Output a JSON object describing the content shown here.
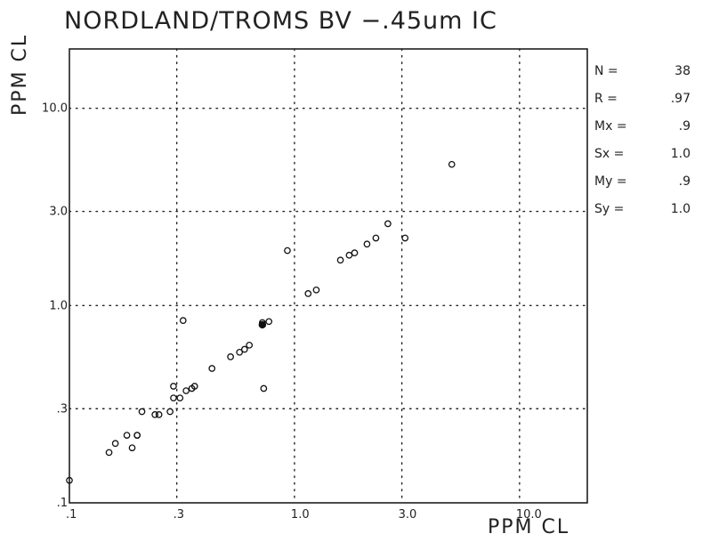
{
  "chart_data": {
    "type": "scatter",
    "title": "NORDLAND/TROMS BV  −.45um IC",
    "xlabel": "PPM CL",
    "ylabel": "PPM CL",
    "x_scale": "log",
    "y_scale": "log",
    "xlim": [
      0.1,
      20
    ],
    "ylim": [
      0.1,
      20
    ],
    "grid": true,
    "x_tick_values": [
      0.1,
      0.3,
      1.0,
      3.0,
      10.0
    ],
    "x_tick_labels": [
      ".1",
      ".3",
      "1.0",
      "3.0",
      "10.0"
    ],
    "y_tick_values": [
      0.1,
      0.3,
      1.0,
      3.0,
      10.0
    ],
    "y_tick_labels": [
      ".1",
      ".3",
      "1.0",
      "3.0",
      "10.0"
    ],
    "stats": [
      {
        "name": "N =",
        "value": "38"
      },
      {
        "name": "R =",
        "value": ".97"
      },
      {
        "name": "Mx =",
        "value": ".9"
      },
      {
        "name": "Sx =",
        "value": "1.0"
      },
      {
        "name": "My =",
        "value": ".9"
      },
      {
        "name": "Sy =",
        "value": "1.0"
      }
    ],
    "points": [
      {
        "x": 0.1,
        "y": 0.13
      },
      {
        "x": 0.15,
        "y": 0.18
      },
      {
        "x": 0.16,
        "y": 0.2
      },
      {
        "x": 0.18,
        "y": 0.22
      },
      {
        "x": 0.19,
        "y": 0.19
      },
      {
        "x": 0.2,
        "y": 0.22
      },
      {
        "x": 0.2,
        "y": 0.22
      },
      {
        "x": 0.21,
        "y": 0.29
      },
      {
        "x": 0.24,
        "y": 0.28
      },
      {
        "x": 0.25,
        "y": 0.28
      },
      {
        "x": 0.28,
        "y": 0.29
      },
      {
        "x": 0.29,
        "y": 0.34
      },
      {
        "x": 0.29,
        "y": 0.39
      },
      {
        "x": 0.31,
        "y": 0.34
      },
      {
        "x": 0.32,
        "y": 0.84
      },
      {
        "x": 0.33,
        "y": 0.37
      },
      {
        "x": 0.35,
        "y": 0.38
      },
      {
        "x": 0.36,
        "y": 0.39
      },
      {
        "x": 0.43,
        "y": 0.48
      },
      {
        "x": 0.52,
        "y": 0.55
      },
      {
        "x": 0.57,
        "y": 0.58
      },
      {
        "x": 0.6,
        "y": 0.6
      },
      {
        "x": 0.63,
        "y": 0.63
      },
      {
        "x": 0.72,
        "y": 0.8
      },
      {
        "x": 0.72,
        "y": 0.82
      },
      {
        "x": 0.73,
        "y": 0.38
      },
      {
        "x": 0.77,
        "y": 0.83
      },
      {
        "x": 0.93,
        "y": 1.9
      },
      {
        "x": 1.15,
        "y": 1.15
      },
      {
        "x": 1.25,
        "y": 1.2
      },
      {
        "x": 1.6,
        "y": 1.7
      },
      {
        "x": 1.75,
        "y": 1.8
      },
      {
        "x": 1.85,
        "y": 1.85
      },
      {
        "x": 2.1,
        "y": 2.05
      },
      {
        "x": 2.3,
        "y": 2.2
      },
      {
        "x": 2.6,
        "y": 2.6
      },
      {
        "x": 3.1,
        "y": 2.2
      },
      {
        "x": 5.0,
        "y": 5.2
      }
    ],
    "filled_point_index": 23
  }
}
